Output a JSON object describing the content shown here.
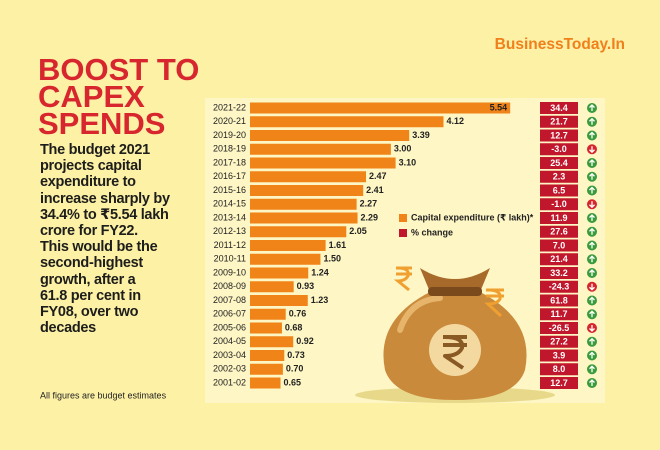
{
  "brand": "BusinessToday.In",
  "chart_data": {
    "type": "bar",
    "orientation": "horizontal",
    "title_lines": [
      "BOOST TO",
      "CAPEX",
      "SPENDS"
    ],
    "description_lines": [
      "The budget 2021",
      "projects capital",
      "expenditure to",
      "increase sharply by",
      "34.4% to ₹5.54 lakh",
      "crore for FY22.",
      "This would be the",
      "second-highest",
      "growth, after a",
      "61.8 per cent in",
      "FY08,  over two",
      "decades"
    ],
    "note": "All figures are budget estimates",
    "categories": [
      "2021-22",
      "2020-21",
      "2019-20",
      "2018-19",
      "2017-18",
      "2016-17",
      "2015-16",
      "2014-15",
      "2013-14",
      "2012-13",
      "2011-12",
      "2010-11",
      "2009-10",
      "2008-09",
      "2007-08",
      "2006-07",
      "2005-06",
      "2004-05",
      "2003-04",
      "2002-03",
      "2001-02"
    ],
    "xlim": [
      0,
      5.6
    ],
    "series": [
      {
        "name": "Capital expenditure (₹ lakh)*",
        "color": "#f08419",
        "values": [
          5.54,
          4.12,
          3.39,
          3.0,
          3.1,
          2.47,
          2.41,
          2.27,
          2.29,
          2.05,
          1.61,
          1.5,
          1.24,
          0.93,
          1.23,
          0.76,
          0.68,
          0.92,
          0.73,
          0.7,
          0.65
        ],
        "value_labels": [
          "5.54",
          "4.12",
          "3.39",
          "3.00",
          "3.10",
          "2.47",
          "2.41",
          "2.27",
          "2.29",
          "2.05",
          "1.61",
          "1.50",
          "1.24",
          "0.93",
          "1.23",
          "0.76",
          "0.68",
          "0.92",
          "0.73",
          "0.70",
          "0.65"
        ]
      },
      {
        "name": "% change",
        "color": "#c1172c",
        "values": [
          34.4,
          21.7,
          12.7,
          -3.0,
          25.4,
          2.3,
          6.5,
          -1.0,
          11.9,
          27.6,
          7.0,
          21.4,
          33.2,
          -24.3,
          61.8,
          11.7,
          -26.5,
          27.2,
          3.9,
          8.0,
          12.7
        ],
        "value_labels": [
          "34.4",
          "21.7",
          "12.7",
          "-3.0",
          "25.4",
          "2.3",
          "6.5",
          "-1.0",
          "11.9",
          "27.6",
          "7.0",
          "21.4",
          "33.2",
          "-24.3",
          "61.8",
          "11.7",
          "-26.5",
          "27.2",
          "3.9",
          "8.0",
          "12.7"
        ]
      }
    ]
  }
}
